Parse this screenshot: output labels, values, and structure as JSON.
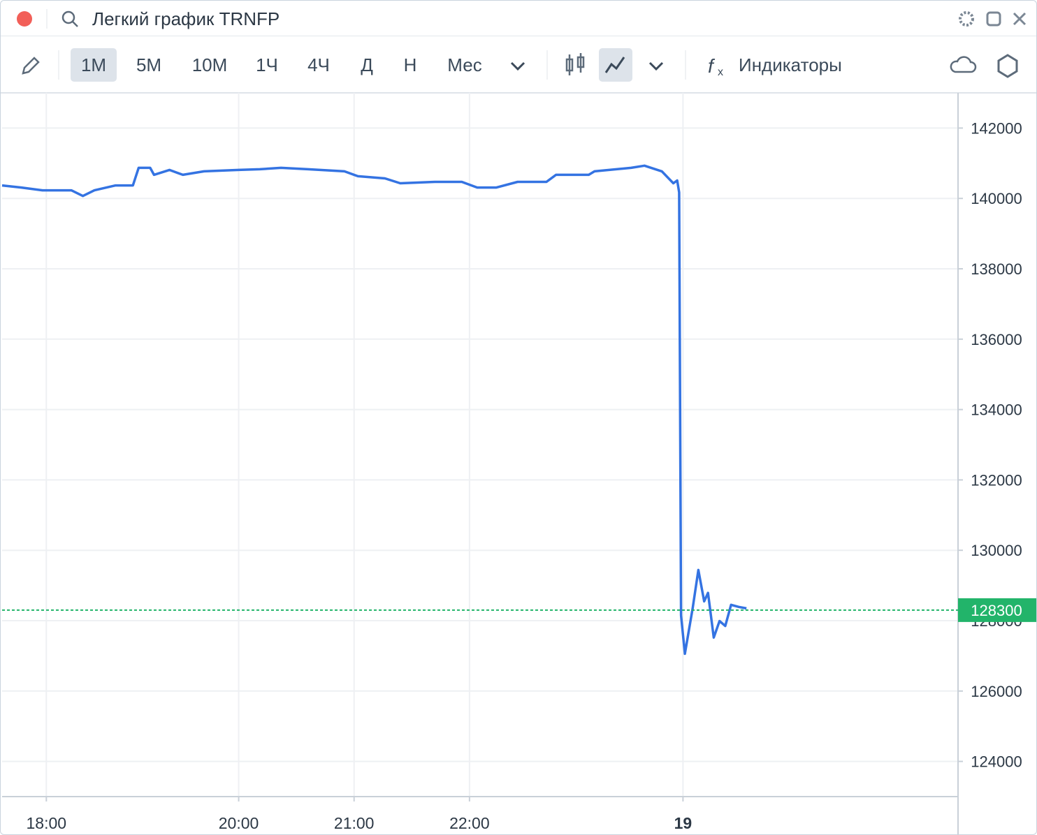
{
  "window": {
    "title": "Легкий график TRNFP"
  },
  "toolbar": {
    "intervals": [
      "1М",
      "5М",
      "10М",
      "1Ч",
      "4Ч",
      "Д",
      "Н",
      "Мес"
    ],
    "indicators": "Индикаторы"
  },
  "chart_data": {
    "type": "line",
    "x": [
      0,
      10,
      21,
      36,
      42,
      48,
      59,
      68,
      71,
      77,
      79,
      87,
      94,
      105,
      123,
      134,
      145,
      159,
      178,
      185,
      199,
      207,
      225,
      239,
      247,
      257,
      268,
      283,
      288,
      305,
      308,
      327,
      334,
      343,
      349,
      351,
      352,
      353,
      355,
      359,
      362,
      365,
      367,
      370,
      373,
      376,
      379,
      383,
      387
    ],
    "series": [
      {
        "name": "TRNFP",
        "color": "#3473e2",
        "values": [
          140370,
          140310,
          140230,
          140230,
          140070,
          140230,
          140370,
          140370,
          140870,
          140870,
          140670,
          140810,
          140670,
          140770,
          140810,
          140830,
          140870,
          140830,
          140770,
          140630,
          140570,
          140430,
          140470,
          140470,
          140310,
          140310,
          140470,
          140470,
          140670,
          140670,
          140770,
          140870,
          140930,
          140770,
          140430,
          140510,
          140170,
          128150,
          127060,
          128350,
          129440,
          128550,
          128790,
          127520,
          127990,
          127850,
          128450,
          128390,
          128350
        ]
      }
    ],
    "xlim": [
      0,
      497
    ],
    "xticks": [
      {
        "value": 23,
        "label": "18:00"
      },
      {
        "value": 123,
        "label": "20:00"
      },
      {
        "value": 183,
        "label": "21:00"
      },
      {
        "value": 243,
        "label": "22:00"
      },
      {
        "value": 354,
        "label": "19"
      }
    ],
    "ylim": [
      123000,
      143000
    ],
    "yticks": [
      124000,
      126000,
      128000,
      130000,
      132000,
      134000,
      136000,
      138000,
      140000,
      142000
    ],
    "grid": true,
    "last_price": {
      "value": 128300,
      "color": "#22b46a"
    }
  }
}
